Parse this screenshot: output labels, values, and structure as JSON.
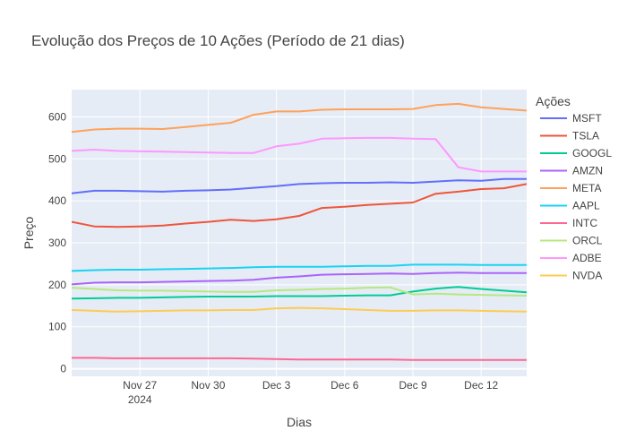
{
  "chart_data": {
    "type": "line",
    "title": "Evolução dos Preços de 10 Ações (Período de 21 dias)",
    "xlabel": "Dias",
    "ylabel": "Preço",
    "legend_title": "Ações",
    "legend_position": "right",
    "grid": true,
    "plot_background": "#e5ecf6",
    "x": [
      "2024-11-24",
      "2024-11-25",
      "2024-11-26",
      "2024-11-27",
      "2024-11-28",
      "2024-11-29",
      "2024-11-30",
      "2024-12-01",
      "2024-12-02",
      "2024-12-03",
      "2024-12-04",
      "2024-12-05",
      "2024-12-06",
      "2024-12-07",
      "2024-12-08",
      "2024-12-09",
      "2024-12-10",
      "2024-12-11",
      "2024-12-12",
      "2024-12-13",
      "2024-12-14"
    ],
    "x_ticks": [
      {
        "date": "2024-11-27",
        "label": "Nov 27",
        "sublabel": "2024"
      },
      {
        "date": "2024-11-30",
        "label": "Nov 30",
        "sublabel": ""
      },
      {
        "date": "2024-12-03",
        "label": "Dec 3",
        "sublabel": ""
      },
      {
        "date": "2024-12-06",
        "label": "Dec 6",
        "sublabel": ""
      },
      {
        "date": "2024-12-09",
        "label": "Dec 9",
        "sublabel": ""
      },
      {
        "date": "2024-12-12",
        "label": "Dec 12",
        "sublabel": ""
      }
    ],
    "xlim": [
      "2024-11-24",
      "2024-12-14"
    ],
    "ylim": [
      -18,
      665
    ],
    "y_ticks": [
      0,
      100,
      200,
      300,
      400,
      500,
      600
    ],
    "series": [
      {
        "name": "MSFT",
        "color": "#636efa",
        "values": [
          418,
          424,
          424,
          423,
          422,
          424,
          425,
          427,
          431,
          435,
          440,
          442,
          443,
          443,
          444,
          443,
          446,
          449,
          448,
          452,
          452
        ]
      },
      {
        "name": "TSLA",
        "color": "#ef553b",
        "values": [
          350,
          339,
          338,
          339,
          341,
          346,
          350,
          355,
          352,
          356,
          364,
          383,
          386,
          390,
          393,
          396,
          417,
          422,
          428,
          430,
          440
        ]
      },
      {
        "name": "GOOGL",
        "color": "#00cc96",
        "values": [
          167,
          168,
          169,
          169,
          170,
          171,
          172,
          172,
          172,
          173,
          173,
          173,
          174,
          175,
          175,
          184,
          191,
          195,
          190,
          186,
          182
        ]
      },
      {
        "name": "AMZN",
        "color": "#ab63fa",
        "values": [
          201,
          205,
          206,
          206,
          207,
          208,
          209,
          210,
          212,
          217,
          220,
          224,
          225,
          226,
          227,
          226,
          228,
          229,
          228,
          228,
          228
        ]
      },
      {
        "name": "META",
        "color": "#ffa15a",
        "values": [
          564,
          570,
          572,
          572,
          571,
          576,
          581,
          586,
          605,
          613,
          613,
          617,
          618,
          618,
          618,
          619,
          628,
          631,
          623,
          619,
          615
        ]
      },
      {
        "name": "AAPL",
        "color": "#19d3f3",
        "values": [
          233,
          235,
          236,
          236,
          237,
          238,
          239,
          240,
          242,
          243,
          243,
          243,
          244,
          245,
          245,
          248,
          248,
          248,
          247,
          247,
          247
        ]
      },
      {
        "name": "INTC",
        "color": "#ff6692",
        "values": [
          26,
          26,
          25,
          25,
          25,
          25,
          25,
          25,
          24,
          23,
          22,
          22,
          22,
          22,
          22,
          21,
          21,
          21,
          21,
          21,
          21
        ]
      },
      {
        "name": "ORCL",
        "color": "#b6e880",
        "values": [
          193,
          190,
          187,
          186,
          186,
          185,
          184,
          183,
          183,
          187,
          188,
          190,
          191,
          193,
          194,
          177,
          179,
          177,
          176,
          175,
          174
        ]
      },
      {
        "name": "ADBE",
        "color": "#ff97ff",
        "values": [
          519,
          522,
          519,
          518,
          517,
          516,
          515,
          514,
          514,
          530,
          536,
          548,
          549,
          550,
          550,
          548,
          547,
          480,
          470,
          470,
          470
        ]
      },
      {
        "name": "NVDA",
        "color": "#fecb52",
        "values": [
          140,
          138,
          136,
          137,
          138,
          139,
          139,
          140,
          140,
          144,
          145,
          144,
          142,
          140,
          138,
          138,
          139,
          139,
          138,
          137,
          136
        ]
      }
    ]
  }
}
